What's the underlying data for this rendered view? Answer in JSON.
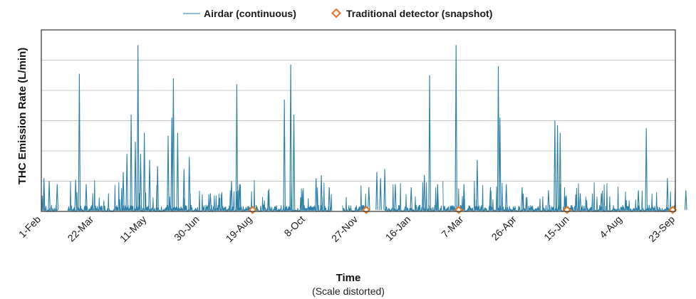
{
  "chart_data": {
    "type": "line",
    "xlabel": "Time",
    "xlabel_note": "(Scale distorted)",
    "ylabel": "THC Emission Rate (L/min)",
    "x_tick_labels": [
      "1-Feb",
      "22-Mar",
      "11-May",
      "30-Jun",
      "19-Aug",
      "8-Oct",
      "27-Nov",
      "16-Jan",
      "7-Mar",
      "26-Apr",
      "15-Jun",
      "4-Aug",
      "23-Sep"
    ],
    "y_gridlines": 6,
    "legend_position": "top-center",
    "series": [
      {
        "name": "Airdar (continuous)",
        "kind": "line",
        "color": "#2a7fa8",
        "baseline_segments": [
          [
            0,
            0.3
          ],
          [
            0.5,
            1.45
          ],
          [
            1.45,
            2.45
          ],
          [
            2.45,
            3.4
          ],
          [
            3.4,
            4.1
          ],
          [
            4.1,
            5.0
          ],
          [
            5.0,
            5.5
          ],
          [
            5.7,
            6.2
          ],
          [
            6.5,
            7.6
          ],
          [
            7.6,
            9.0
          ],
          [
            9.0,
            9.5
          ],
          [
            9.5,
            10.6
          ],
          [
            10.6,
            11.4
          ],
          [
            11.4,
            12.0
          ]
        ],
        "peaks": [
          {
            "x": 0.05,
            "y": 1.1
          },
          {
            "x": 0.15,
            "y": 1.0
          },
          {
            "x": 0.3,
            "y": 0.9
          },
          {
            "x": 0.65,
            "y": 1.05
          },
          {
            "x": 0.72,
            "y": 4.55
          },
          {
            "x": 0.85,
            "y": 0.9
          },
          {
            "x": 1.55,
            "y": 1.3
          },
          {
            "x": 1.62,
            "y": 1.9
          },
          {
            "x": 1.7,
            "y": 3.2
          },
          {
            "x": 1.78,
            "y": 2.3
          },
          {
            "x": 1.83,
            "y": 5.5
          },
          {
            "x": 1.88,
            "y": 1.9
          },
          {
            "x": 1.95,
            "y": 2.6
          },
          {
            "x": 2.05,
            "y": 1.7
          },
          {
            "x": 2.2,
            "y": 1.5
          },
          {
            "x": 2.4,
            "y": 2.5
          },
          {
            "x": 2.47,
            "y": 3.1
          },
          {
            "x": 2.5,
            "y": 4.4
          },
          {
            "x": 2.58,
            "y": 2.6
          },
          {
            "x": 2.7,
            "y": 1.4
          },
          {
            "x": 2.8,
            "y": 1.8
          },
          {
            "x": 3.2,
            "y": 0.6
          },
          {
            "x": 3.6,
            "y": 1.0
          },
          {
            "x": 3.7,
            "y": 4.2
          },
          {
            "x": 3.75,
            "y": 0.9
          },
          {
            "x": 4.6,
            "y": 3.7
          },
          {
            "x": 4.72,
            "y": 4.85
          },
          {
            "x": 4.78,
            "y": 3.2
          },
          {
            "x": 4.95,
            "y": 0.7
          },
          {
            "x": 5.2,
            "y": 1.1
          },
          {
            "x": 5.3,
            "y": 1.2
          },
          {
            "x": 5.45,
            "y": 0.8
          },
          {
            "x": 6.2,
            "y": 0.8
          },
          {
            "x": 6.35,
            "y": 1.3
          },
          {
            "x": 6.42,
            "y": 1.1
          },
          {
            "x": 6.5,
            "y": 1.4
          },
          {
            "x": 6.7,
            "y": 0.9
          },
          {
            "x": 7.0,
            "y": 0.8
          },
          {
            "x": 7.25,
            "y": 1.2
          },
          {
            "x": 7.35,
            "y": 4.5
          },
          {
            "x": 7.5,
            "y": 0.9
          },
          {
            "x": 7.85,
            "y": 5.5
          },
          {
            "x": 8.0,
            "y": 0.9
          },
          {
            "x": 8.25,
            "y": 1.7
          },
          {
            "x": 8.5,
            "y": 0.8
          },
          {
            "x": 8.65,
            "y": 4.8
          },
          {
            "x": 8.68,
            "y": 3.1
          },
          {
            "x": 8.8,
            "y": 0.9
          },
          {
            "x": 9.1,
            "y": 0.8
          },
          {
            "x": 9.6,
            "y": 0.7
          },
          {
            "x": 9.72,
            "y": 3.0
          },
          {
            "x": 9.77,
            "y": 2.85
          },
          {
            "x": 9.82,
            "y": 2.6
          },
          {
            "x": 10.2,
            "y": 0.6
          },
          {
            "x": 10.6,
            "y": 0.6
          },
          {
            "x": 11.3,
            "y": 0.7
          },
          {
            "x": 11.45,
            "y": 2.75
          },
          {
            "x": 11.85,
            "y": 1.1
          },
          {
            "x": 12.2,
            "y": 0.7
          },
          {
            "x": 12.6,
            "y": 0.8
          },
          {
            "x": 12.75,
            "y": 0.9
          },
          {
            "x": 12.85,
            "y": 0.9
          }
        ]
      },
      {
        "name": "Traditional detector (snapshot)",
        "kind": "marker",
        "color": "#e8731e",
        "points": [
          {
            "x": 4.0,
            "y": 0.05
          },
          {
            "x": 6.15,
            "y": 0.05
          },
          {
            "x": 7.9,
            "y": 0.05
          },
          {
            "x": 9.95,
            "y": 0.05
          },
          {
            "x": 11.95,
            "y": 0.05
          }
        ]
      }
    ]
  }
}
